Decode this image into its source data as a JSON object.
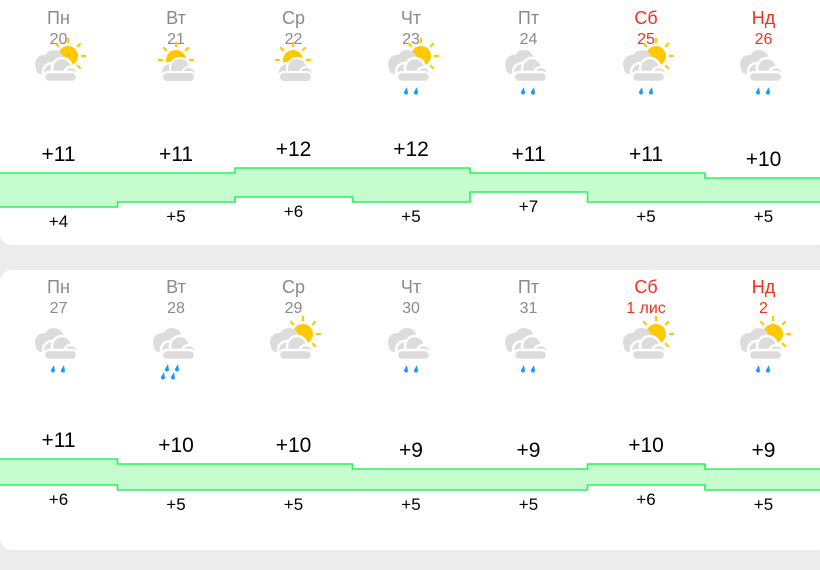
{
  "colors": {
    "weekday": "#8a8a8a",
    "weekend": "#f5301c",
    "band_fill": "#c5fdcf",
    "band_line": "#2ef05e",
    "sun": "#ffc800",
    "cloud": "#dcdcdc",
    "rain": "#1a9cf0"
  },
  "weeks": [
    {
      "days": [
        {
          "name": "Пн",
          "date": "20",
          "weekend": false,
          "icon": "partly-cloudy-icon",
          "max": "+11",
          "min": "+4",
          "tmax": 11,
          "tmin": 4
        },
        {
          "name": "Вт",
          "date": "21",
          "weekend": false,
          "icon": "mostly-sunny-icon",
          "max": "+11",
          "min": "+5",
          "tmax": 11,
          "tmin": 5
        },
        {
          "name": "Ср",
          "date": "22",
          "weekend": false,
          "icon": "mostly-sunny-icon",
          "max": "+12",
          "min": "+6",
          "tmax": 12,
          "tmin": 6
        },
        {
          "name": "Чт",
          "date": "23",
          "weekend": false,
          "icon": "partly-cloudy-rain-icon",
          "max": "+12",
          "min": "+5",
          "tmax": 12,
          "tmin": 5
        },
        {
          "name": "Пт",
          "date": "24",
          "weekend": false,
          "icon": "cloudy-rain-icon",
          "max": "+11",
          "min": "+7",
          "tmax": 11,
          "tmin": 7
        },
        {
          "name": "Сб",
          "date": "25",
          "weekend": true,
          "icon": "partly-cloudy-rain-icon",
          "max": "+11",
          "min": "+5",
          "tmax": 11,
          "tmin": 5
        },
        {
          "name": "Нд",
          "date": "26",
          "weekend": true,
          "icon": "cloudy-rain-icon",
          "max": "+10",
          "min": "+5",
          "tmax": 10,
          "tmin": 5
        }
      ]
    },
    {
      "days": [
        {
          "name": "Пн",
          "date": "27",
          "weekend": false,
          "icon": "cloudy-rain-icon",
          "max": "+11",
          "min": "+6",
          "tmax": 11,
          "tmin": 6
        },
        {
          "name": "Вт",
          "date": "28",
          "weekend": false,
          "icon": "cloudy-heavy-rain-icon",
          "max": "+10",
          "min": "+5",
          "tmax": 10,
          "tmin": 5
        },
        {
          "name": "Ср",
          "date": "29",
          "weekend": false,
          "icon": "partly-cloudy-icon",
          "max": "+10",
          "min": "+5",
          "tmax": 10,
          "tmin": 5
        },
        {
          "name": "Чт",
          "date": "30",
          "weekend": false,
          "icon": "cloudy-rain-icon",
          "max": "+9",
          "min": "+5",
          "tmax": 9,
          "tmin": 5
        },
        {
          "name": "Пт",
          "date": "31",
          "weekend": false,
          "icon": "cloudy-rain-icon",
          "max": "+9",
          "min": "+5",
          "tmax": 9,
          "tmin": 5
        },
        {
          "name": "Сб",
          "date": "1 лис",
          "weekend": true,
          "icon": "partly-cloudy-icon",
          "max": "+10",
          "min": "+6",
          "tmax": 10,
          "tmin": 6
        },
        {
          "name": "Нд",
          "date": "2",
          "weekend": true,
          "icon": "partly-cloudy-rain-icon",
          "max": "+9",
          "min": "+5",
          "tmax": 9,
          "tmin": 5
        }
      ]
    }
  ]
}
